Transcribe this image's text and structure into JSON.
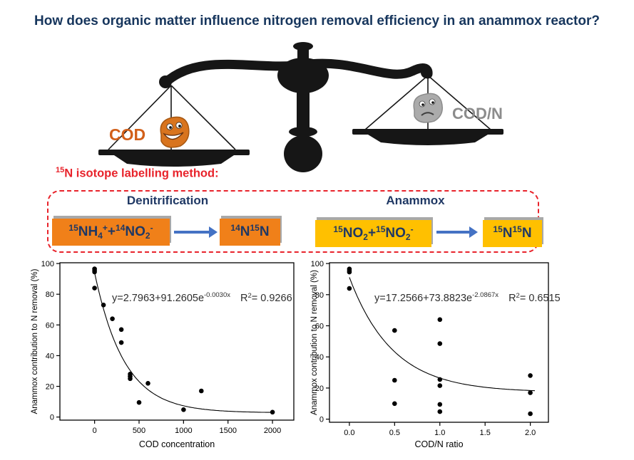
{
  "page_title": "How does organic matter influence nitrogen removal efficiency in an anammox reactor?",
  "balance": {
    "left_label": "COD",
    "right_label": "COD/N"
  },
  "method_label": {
    "sup": "15",
    "text": "N isotope labelling method:"
  },
  "reactions": {
    "denitrification": {
      "heading": "Denitrification",
      "substrate": {
        "s1": "15",
        "t1": "NH",
        "b1": "4",
        "s2": "+",
        "t2": "+",
        "s3": "14",
        "t3": "NO",
        "b2": "2",
        "s4": "-"
      },
      "product": {
        "s1": "14",
        "t1": "N",
        "s2": "15",
        "t2": "N"
      }
    },
    "anammox": {
      "heading": "Anammox",
      "substrate": {
        "s1": "15",
        "t1": "NO",
        "b1": "2",
        "t2": "+",
        "s2": "15",
        "t3": "NO",
        "b2": "2",
        "s3": "-"
      },
      "product": {
        "s1": "15",
        "t1": "N",
        "s2": "15",
        "t2": "N"
      }
    }
  },
  "colors": {
    "title_navy": "#17365D",
    "formula_navy": "#1F3864",
    "red_accent": "#E8232B",
    "orange_box": "#F08019",
    "yellow_box": "#FFC000",
    "arrow_blue": "#4472C4",
    "cod_label_orange": "#D2601A",
    "codn_label_gray": "#8C8C8C"
  },
  "chart_data": [
    {
      "type": "scatter",
      "title": "",
      "xlabel": "COD concentration",
      "ylabel": "Anammox contribution to N removal (%)",
      "xlim": [
        -390,
        2240
      ],
      "ylim": [
        -2,
        100.5
      ],
      "xticks": [
        0,
        500,
        1000,
        1500,
        2000
      ],
      "xtick_labels": [
        "0",
        "500",
        "1000",
        "1500",
        "2000"
      ],
      "yticks": [
        0,
        20,
        40,
        60,
        80,
        100
      ],
      "grid": false,
      "points": [
        [
          0,
          96.5
        ],
        [
          0,
          95.5
        ],
        [
          0,
          94.5
        ],
        [
          0,
          84
        ],
        [
          100,
          73
        ],
        [
          200,
          64
        ],
        [
          300,
          57
        ],
        [
          300,
          48.5
        ],
        [
          400,
          28
        ],
        [
          400,
          26.5
        ],
        [
          400,
          25
        ],
        [
          500,
          9.5
        ],
        [
          600,
          22
        ],
        [
          1000,
          4.8
        ],
        [
          1200,
          17
        ],
        [
          2000,
          3.2
        ]
      ],
      "fit": {
        "a": 2.7963,
        "b": 91.2605,
        "c": -0.003,
        "range": [
          0,
          2010
        ]
      },
      "equation": {
        "lhs": "y=2.7963+91.2605e",
        "exp": "-0.0030x",
        "r2_label": "R",
        "r2_sup": "2",
        "r2_value": "= 0.9266"
      }
    },
    {
      "type": "scatter",
      "title": "",
      "xlabel": "COD/N ratio",
      "ylabel": "Anammox contribution to N removal (%)",
      "xlim": [
        -0.22,
        2.2
      ],
      "ylim": [
        -2,
        100.5
      ],
      "xticks": [
        0,
        0.5,
        1,
        1.5,
        2
      ],
      "xtick_labels": [
        "0.0",
        "0.5",
        "1.0",
        "1.5",
        "2.0"
      ],
      "yticks": [
        0,
        20,
        40,
        60,
        80,
        100
      ],
      "grid": false,
      "points": [
        [
          0,
          96.5
        ],
        [
          0,
          95.5
        ],
        [
          0,
          94.5
        ],
        [
          0,
          84
        ],
        [
          0.5,
          57
        ],
        [
          0.5,
          25
        ],
        [
          0.5,
          10
        ],
        [
          1,
          64
        ],
        [
          1,
          48.5
        ],
        [
          1,
          25.5
        ],
        [
          1,
          21.5
        ],
        [
          1,
          9.5
        ],
        [
          1,
          4.8
        ],
        [
          2,
          28
        ],
        [
          2,
          17
        ],
        [
          2,
          3.5
        ]
      ],
      "fit": {
        "a": 17.2566,
        "b": 73.8823,
        "c": -2.0867,
        "range": [
          0,
          2.05
        ]
      },
      "equation": {
        "lhs": "y=17.2566+73.8823e",
        "exp": "-2.0867x",
        "r2_label": "R",
        "r2_sup": "2",
        "r2_value": "= 0.6515"
      }
    }
  ]
}
